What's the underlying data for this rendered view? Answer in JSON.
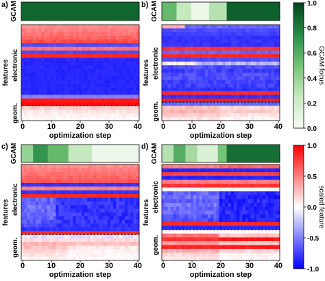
{
  "chart_data": [
    {
      "type": "heatmap",
      "panel_label": "a)",
      "gcam_label": "GCAM",
      "xlabel": "optimization step",
      "ylabel": "features",
      "group_labels": [
        "electronic",
        "geom."
      ],
      "x_ticks": [
        0,
        10,
        20,
        30,
        40
      ],
      "xlim": [
        0,
        40
      ],
      "gcam": {
        "colormap": "greens",
        "segments": [
          {
            "from": 0,
            "to": 40,
            "value": 0.88
          }
        ]
      },
      "feature_rows": [
        {
          "value": 0.45,
          "late": 0.4,
          "t": 0,
          "jitter": 0.05
        },
        {
          "value": 0.5,
          "late": 0.45,
          "t": 0,
          "jitter": 0.05
        },
        {
          "value": 0.55,
          "late": 0.5,
          "t": 0,
          "jitter": 0.05
        },
        {
          "value": 0.6,
          "late": 0.55,
          "t": 0,
          "jitter": 0.05
        },
        {
          "value": 0.7,
          "late": 0.6,
          "t": 0,
          "jitter": 0.05
        },
        {
          "value": -0.7,
          "late": -0.7,
          "t": 0,
          "jitter": 0.03
        },
        {
          "value": 0.55,
          "late": 0.5,
          "t": 0,
          "jitter": 0.05
        },
        {
          "value": -0.7,
          "late": -0.7,
          "t": 0,
          "jitter": 0.03
        },
        {
          "value": 0.85,
          "late": 0.85,
          "t": 0,
          "jitter": 0.02
        },
        {
          "value": -0.85,
          "late": -0.85,
          "t": 0,
          "jitter": 0.03
        },
        {
          "value": -0.85,
          "late": -0.85,
          "t": 0,
          "jitter": 0.03
        },
        {
          "value": -0.85,
          "late": -0.85,
          "t": 0,
          "jitter": 0.03
        },
        {
          "value": -0.85,
          "late": -0.85,
          "t": 0,
          "jitter": 0.03
        },
        {
          "value": -0.85,
          "late": -0.85,
          "t": 0,
          "jitter": 0.03
        },
        {
          "value": -0.85,
          "late": -0.85,
          "t": 0,
          "jitter": 0.03
        },
        {
          "value": -0.85,
          "late": -0.85,
          "t": 0,
          "jitter": 0.03
        },
        {
          "value": -0.85,
          "late": -0.85,
          "t": 0,
          "jitter": 0.03
        },
        {
          "value": -0.85,
          "late": -0.85,
          "t": 0,
          "jitter": 0.03
        },
        {
          "value": -0.85,
          "late": -0.85,
          "t": 0,
          "jitter": 0.03
        },
        {
          "value": -0.5,
          "late": -0.5,
          "t": 0,
          "jitter": 0.03
        },
        {
          "value": 0.9,
          "late": 0.9,
          "t": 0,
          "jitter": 0.02
        },
        {
          "value": 0.95,
          "late": 0.95,
          "t": 0,
          "jitter": 0.02
        },
        {
          "value": 0.2,
          "late": 0.2,
          "t": 0,
          "jitter": 0.05
        },
        {
          "value": 0.1,
          "late": 0.1,
          "t": 0,
          "jitter": 0.05
        },
        {
          "value": 0.05,
          "late": 0.05,
          "t": 0,
          "jitter": 0.04
        },
        {
          "value": 0.03,
          "late": 0.03,
          "t": 0,
          "jitter": 0.03
        }
      ],
      "separator_row": 22
    },
    {
      "type": "heatmap",
      "panel_label": "b)",
      "gcam_label": "GCAM",
      "xlabel": "optimization step",
      "ylabel": "features",
      "group_labels": [
        "electronic",
        "geom."
      ],
      "x_ticks": [
        0,
        10,
        20,
        30,
        40
      ],
      "xlim": [
        0,
        40
      ],
      "gcam": {
        "colormap": "greens",
        "segments": [
          {
            "from": 0,
            "to": 5,
            "value": 0.55
          },
          {
            "from": 5,
            "to": 10,
            "value": 0.25
          },
          {
            "from": 10,
            "to": 16,
            "value": 0.05
          },
          {
            "from": 16,
            "to": 22,
            "value": 0.3
          },
          {
            "from": 22,
            "to": 40,
            "value": 0.9
          }
        ]
      },
      "feature_rows": [
        {
          "value": 0.3,
          "late": -0.6,
          "t": 8,
          "jitter": 0.06
        },
        {
          "value": -0.7,
          "late": -0.8,
          "t": 0,
          "jitter": 0.04
        },
        {
          "value": -0.75,
          "late": -0.8,
          "t": 0,
          "jitter": 0.04
        },
        {
          "value": -0.8,
          "late": -0.8,
          "t": 0,
          "jitter": 0.04
        },
        {
          "value": -0.8,
          "late": -0.8,
          "t": 0,
          "jitter": 0.04
        },
        {
          "value": -0.8,
          "late": -0.8,
          "t": 0,
          "jitter": 0.04
        },
        {
          "value": 0.8,
          "late": 0.8,
          "t": 0,
          "jitter": 0.03
        },
        {
          "value": -0.6,
          "late": -0.6,
          "t": 0,
          "jitter": 0.05
        },
        {
          "value": 0.85,
          "late": 0.85,
          "t": 0,
          "jitter": 0.03
        },
        {
          "value": -0.7,
          "late": -0.7,
          "t": 0,
          "jitter": 0.05
        },
        {
          "value": 0.05,
          "late": -0.3,
          "t": 12,
          "jitter": 0.1
        },
        {
          "value": -0.7,
          "late": -0.8,
          "t": 0,
          "jitter": 0.08
        },
        {
          "value": -0.75,
          "late": -0.8,
          "t": 0,
          "jitter": 0.08
        },
        {
          "value": -0.7,
          "late": -0.8,
          "t": 0,
          "jitter": 0.08
        },
        {
          "value": -0.7,
          "late": -0.8,
          "t": 0,
          "jitter": 0.08
        },
        {
          "value": -0.75,
          "late": -0.8,
          "t": 0,
          "jitter": 0.08
        },
        {
          "value": -0.75,
          "late": -0.8,
          "t": 0,
          "jitter": 0.08
        },
        {
          "value": -0.8,
          "late": -0.8,
          "t": 0,
          "jitter": 0.05
        },
        {
          "value": 0.85,
          "late": 0.85,
          "t": 0,
          "jitter": 0.02
        },
        {
          "value": -0.8,
          "late": -0.8,
          "t": 0,
          "jitter": 0.04
        },
        {
          "value": 0.9,
          "late": 0.9,
          "t": 0,
          "jitter": 0.02
        },
        {
          "value": -0.6,
          "late": -0.6,
          "t": 0,
          "jitter": 0.04
        },
        {
          "value": 0.25,
          "late": 0.15,
          "t": 20,
          "jitter": 0.06
        },
        {
          "value": 0.3,
          "late": 0.2,
          "t": 20,
          "jitter": 0.06
        },
        {
          "value": 0.2,
          "late": 0.1,
          "t": 20,
          "jitter": 0.06
        },
        {
          "value": 0.1,
          "late": 0.05,
          "t": 20,
          "jitter": 0.05
        }
      ],
      "separator_row": 21
    },
    {
      "type": "heatmap",
      "panel_label": "c)",
      "gcam_label": "GCAM",
      "xlabel": "optimization step",
      "ylabel": "features",
      "group_labels": [
        "electronic",
        "geom."
      ],
      "x_ticks": [
        0,
        10,
        20,
        30,
        40
      ],
      "xlim": [
        0,
        40
      ],
      "gcam": {
        "colormap": "greens",
        "segments": [
          {
            "from": 0,
            "to": 4,
            "value": 0.4
          },
          {
            "from": 4,
            "to": 9,
            "value": 0.7
          },
          {
            "from": 9,
            "to": 16,
            "value": 0.55
          },
          {
            "from": 16,
            "to": 24,
            "value": 0.25
          },
          {
            "from": 24,
            "to": 40,
            "value": 0.05
          }
        ]
      },
      "feature_rows": [
        {
          "value": 0.45,
          "late": 0.4,
          "t": 0,
          "jitter": 0.05
        },
        {
          "value": 0.5,
          "late": 0.45,
          "t": 0,
          "jitter": 0.05
        },
        {
          "value": 0.55,
          "late": 0.5,
          "t": 0,
          "jitter": 0.05
        },
        {
          "value": 0.6,
          "late": 0.55,
          "t": 0,
          "jitter": 0.05
        },
        {
          "value": 0.65,
          "late": 0.6,
          "t": 0,
          "jitter": 0.05
        },
        {
          "value": -0.8,
          "late": -0.8,
          "t": 0,
          "jitter": 0.03
        },
        {
          "value": 0.5,
          "late": 0.5,
          "t": 0,
          "jitter": 0.05
        },
        {
          "value": -0.8,
          "late": -0.8,
          "t": 0,
          "jitter": 0.03
        },
        {
          "value": 0.85,
          "late": 0.85,
          "t": 0,
          "jitter": 0.02
        },
        {
          "value": -0.6,
          "late": -0.8,
          "t": 12,
          "jitter": 0.1
        },
        {
          "value": -0.6,
          "late": -0.8,
          "t": 12,
          "jitter": 0.1
        },
        {
          "value": -0.55,
          "late": -0.8,
          "t": 12,
          "jitter": 0.1
        },
        {
          "value": -0.6,
          "late": -0.8,
          "t": 12,
          "jitter": 0.1
        },
        {
          "value": -0.6,
          "late": -0.8,
          "t": 12,
          "jitter": 0.1
        },
        {
          "value": -0.6,
          "late": -0.8,
          "t": 12,
          "jitter": 0.1
        },
        {
          "value": -0.65,
          "late": -0.8,
          "t": 12,
          "jitter": 0.1
        },
        {
          "value": -0.7,
          "late": -0.8,
          "t": 12,
          "jitter": 0.08
        },
        {
          "value": -0.8,
          "late": -0.8,
          "t": 0,
          "jitter": 0.05
        },
        {
          "value": 0.85,
          "late": 0.85,
          "t": 0,
          "jitter": 0.02
        },
        {
          "value": -0.1,
          "late": 0.0,
          "t": 0,
          "jitter": 0.08
        },
        {
          "value": 0.15,
          "late": 0.1,
          "t": 0,
          "jitter": 0.06
        },
        {
          "value": 0.3,
          "late": 0.25,
          "t": 16,
          "jitter": 0.06
        },
        {
          "value": 0.25,
          "late": 0.1,
          "t": 16,
          "jitter": 0.06
        },
        {
          "value": 0.15,
          "late": 0.05,
          "t": 16,
          "jitter": 0.05
        },
        {
          "value": 0.1,
          "late": 0.03,
          "t": 16,
          "jitter": 0.05
        },
        {
          "value": 0.05,
          "late": 0.02,
          "t": 16,
          "jitter": 0.04
        }
      ],
      "separator_row": 19
    },
    {
      "type": "heatmap",
      "panel_label": "d)",
      "gcam_label": "GCAM",
      "xlabel": "optimization step",
      "ylabel": "features",
      "group_labels": [
        "electronic",
        "geom."
      ],
      "x_ticks": [
        0,
        10,
        20,
        30,
        40
      ],
      "xlim": [
        0,
        40
      ],
      "gcam": {
        "colormap": "greens",
        "segments": [
          {
            "from": 0,
            "to": 4,
            "value": 0.3
          },
          {
            "from": 4,
            "to": 8,
            "value": 0.6
          },
          {
            "from": 8,
            "to": 12,
            "value": 0.35
          },
          {
            "from": 12,
            "to": 19,
            "value": 0.15
          },
          {
            "from": 19,
            "to": 22,
            "value": 0.5
          },
          {
            "from": 22,
            "to": 40,
            "value": 0.85
          }
        ]
      },
      "feature_rows": [
        {
          "value": 0.5,
          "late": 0.6,
          "t": 20,
          "jitter": 0.06
        },
        {
          "value": -0.85,
          "late": -0.85,
          "t": 0,
          "jitter": 0.03
        },
        {
          "value": 0.75,
          "late": 0.75,
          "t": 0,
          "jitter": 0.03
        },
        {
          "value": -0.85,
          "late": -0.85,
          "t": 0,
          "jitter": 0.03
        },
        {
          "value": 0.5,
          "late": 0.5,
          "t": 0,
          "jitter": 0.05
        },
        {
          "value": 0.8,
          "late": 0.8,
          "t": 0,
          "jitter": 0.03
        },
        {
          "value": 0.0,
          "late": 0.05,
          "t": 0,
          "jitter": 0.06
        },
        {
          "value": -0.6,
          "late": -0.85,
          "t": 20,
          "jitter": 0.1
        },
        {
          "value": -0.55,
          "late": -0.85,
          "t": 20,
          "jitter": 0.1
        },
        {
          "value": -0.6,
          "late": -0.85,
          "t": 20,
          "jitter": 0.1
        },
        {
          "value": -0.55,
          "late": -0.85,
          "t": 20,
          "jitter": 0.1
        },
        {
          "value": -0.6,
          "late": -0.85,
          "t": 20,
          "jitter": 0.1
        },
        {
          "value": -0.6,
          "late": -0.85,
          "t": 20,
          "jitter": 0.1
        },
        {
          "value": -0.65,
          "late": -0.85,
          "t": 20,
          "jitter": 0.1
        },
        {
          "value": -0.7,
          "late": -0.85,
          "t": 20,
          "jitter": 0.08
        },
        {
          "value": 0.85,
          "late": 0.85,
          "t": 0,
          "jitter": 0.02
        },
        {
          "value": -0.85,
          "late": -0.85,
          "t": 0,
          "jitter": 0.03
        },
        {
          "value": 0.0,
          "late": 0.0,
          "t": 0,
          "jitter": 0.05
        },
        {
          "value": 0.55,
          "late": 0.25,
          "t": 20,
          "jitter": 0.06
        },
        {
          "value": 0.8,
          "late": 0.9,
          "t": 20,
          "jitter": 0.04
        },
        {
          "value": 0.4,
          "late": 0.2,
          "t": 20,
          "jitter": 0.06
        },
        {
          "value": 0.85,
          "late": 0.9,
          "t": 20,
          "jitter": 0.03
        },
        {
          "value": 0.3,
          "late": 0.15,
          "t": 20,
          "jitter": 0.06
        },
        {
          "value": 0.15,
          "late": 0.05,
          "t": 20,
          "jitter": 0.05
        },
        {
          "value": 0.1,
          "late": 0.03,
          "t": 20,
          "jitter": 0.04
        }
      ],
      "separator_row": 17
    }
  ],
  "colorbars": [
    {
      "label": "GCAM focus",
      "colormap": "greens",
      "range": [
        0,
        1
      ],
      "ticks": [
        "1.0",
        "0.8",
        "0.6",
        "0.4",
        "0.2",
        "0.0"
      ]
    },
    {
      "label": "scaled feature",
      "colormap": "bwr",
      "range": [
        -1,
        1
      ],
      "ticks": [
        "1.0",
        "0.5",
        "0.0",
        "-0.5",
        "-1.0"
      ]
    }
  ]
}
